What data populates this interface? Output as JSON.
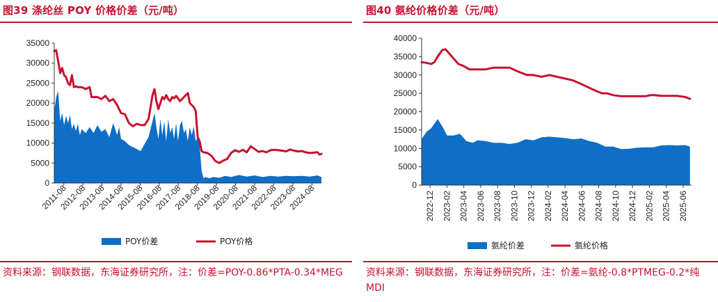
{
  "left": {
    "title": "图39  涤纶丝 POY 价格价差（元/吨）",
    "source": "资料来源：钢联数据，东海证券研究所，注：价差=POY-0.86*PTA-0.34*MEG",
    "chart_data": {
      "type": "area+line",
      "ylim": [
        0,
        35000
      ],
      "yticks": [
        "0",
        "5000",
        "10000",
        "15000",
        "20000",
        "25000",
        "30000",
        "35000"
      ],
      "xticks": [
        "2011-08",
        "2012-08",
        "2013-08",
        "2014-08",
        "2015-08",
        "2016-08",
        "2017-08",
        "2018-08",
        "2019-08",
        "2020-08",
        "2021-08",
        "2022-08",
        "2023-08",
        "2024-08"
      ],
      "x_range": [
        2011.6,
        2025.2
      ],
      "legend": [
        "POY价差",
        "POY价格"
      ],
      "colors": {
        "area": "#0f6fc6",
        "line": "#c8102e"
      },
      "series": [
        {
          "name": "POY价差",
          "kind": "area",
          "x": [
            2011.6,
            2011.7,
            2011.8,
            2011.9,
            2012.0,
            2012.1,
            2012.2,
            2012.3,
            2012.4,
            2012.5,
            2012.6,
            2012.7,
            2012.8,
            2012.9,
            2013.0,
            2013.2,
            2013.4,
            2013.6,
            2013.8,
            2014.0,
            2014.2,
            2014.4,
            2014.6,
            2014.8,
            2014.9,
            2015.0,
            2015.2,
            2015.4,
            2015.6,
            2015.8,
            2016.0,
            2016.2,
            2016.4,
            2016.6,
            2016.7,
            2016.8,
            2016.9,
            2017.0,
            2017.1,
            2017.2,
            2017.3,
            2017.4,
            2017.5,
            2017.6,
            2017.7,
            2017.8,
            2017.9,
            2018.0,
            2018.1,
            2018.2,
            2018.3,
            2018.4,
            2018.5,
            2018.6,
            2018.7,
            2018.8,
            2018.9,
            2019.0,
            2019.1,
            2019.2,
            2019.3,
            2019.5,
            2019.7,
            2020.0,
            2020.3,
            2020.6,
            2021.0,
            2021.4,
            2021.8,
            2022.2,
            2022.6,
            2023.0,
            2023.4,
            2023.8,
            2024.2,
            2024.6,
            2025.0,
            2025.2
          ],
          "y": [
            18000,
            21500,
            23000,
            15500,
            17500,
            14500,
            16800,
            15000,
            17000,
            13500,
            14800,
            13000,
            14800,
            12000,
            13500,
            12500,
            14000,
            12500,
            14500,
            12800,
            13500,
            11500,
            15000,
            12000,
            14000,
            11000,
            10500,
            9500,
            9000,
            8500,
            8000,
            9800,
            11500,
            15500,
            17500,
            14000,
            11000,
            16000,
            12000,
            15500,
            10500,
            16000,
            12500,
            14000,
            11000,
            15000,
            10500,
            14500,
            15500,
            12500,
            13500,
            10500,
            14000,
            12000,
            14200,
            10500,
            11500,
            9500,
            3000,
            1200,
            1500,
            1200,
            1500,
            1300,
            1800,
            1500,
            2000,
            1600,
            1900,
            1500,
            1800,
            1600,
            1800,
            1700,
            1800,
            1600,
            1900,
            1500
          ]
        },
        {
          "name": "POY价格",
          "kind": "line",
          "x": [
            2011.6,
            2011.7,
            2011.8,
            2011.9,
            2012.0,
            2012.1,
            2012.2,
            2012.3,
            2012.4,
            2012.5,
            2012.6,
            2012.7,
            2012.8,
            2013.0,
            2013.2,
            2013.4,
            2013.5,
            2013.8,
            2014.0,
            2014.2,
            2014.4,
            2014.6,
            2014.8,
            2015.0,
            2015.2,
            2015.4,
            2015.6,
            2015.8,
            2016.0,
            2016.2,
            2016.4,
            2016.5,
            2016.6,
            2016.7,
            2016.8,
            2016.9,
            2017.0,
            2017.1,
            2017.2,
            2017.3,
            2017.4,
            2017.5,
            2017.6,
            2017.7,
            2017.8,
            2018.0,
            2018.2,
            2018.4,
            2018.5,
            2018.6,
            2018.7,
            2018.8,
            2018.9,
            2019.0,
            2019.1,
            2019.2,
            2019.4,
            2019.6,
            2019.8,
            2020.0,
            2020.2,
            2020.4,
            2020.6,
            2020.8,
            2021.0,
            2021.2,
            2021.4,
            2021.6,
            2021.8,
            2022.0,
            2022.2,
            2022.4,
            2022.6,
            2022.8,
            2023.0,
            2023.2,
            2023.4,
            2023.6,
            2023.8,
            2024.0,
            2024.2,
            2024.4,
            2024.6,
            2024.8,
            2025.0,
            2025.1,
            2025.2
          ],
          "y": [
            33000,
            33200,
            30500,
            27500,
            28800,
            27000,
            26500,
            25000,
            24500,
            27000,
            24000,
            24200,
            24000,
            24000,
            23500,
            24000,
            21500,
            21500,
            21000,
            21800,
            20500,
            21000,
            19500,
            17500,
            17200,
            15000,
            14200,
            14800,
            14500,
            14500,
            16000,
            19000,
            22000,
            23500,
            20500,
            18500,
            20000,
            21500,
            21000,
            22000,
            21000,
            20500,
            21500,
            21200,
            21800,
            20500,
            21500,
            22500,
            20000,
            19500,
            19000,
            18000,
            11500,
            10500,
            8000,
            7700,
            7500,
            6800,
            5500,
            5000,
            5600,
            6000,
            7500,
            8200,
            7800,
            8300,
            7700,
            9200,
            8500,
            7800,
            8000,
            7700,
            8200,
            8300,
            8200,
            8100,
            7900,
            8400,
            8100,
            7900,
            8000,
            7700,
            7500,
            7600,
            7700,
            7100,
            7300
          ]
        }
      ]
    }
  },
  "right": {
    "title": "图40  氨纶价格价差（元/吨）",
    "source": "资料来源：钢联数据，东海证券研究所，注：价差=氨纶-0.8*PTMEG-0.2*纯 MDI",
    "chart_data": {
      "type": "area+line",
      "ylim": [
        0,
        40000
      ],
      "yticks": [
        "0",
        "5000",
        "10000",
        "15000",
        "20000",
        "25000",
        "30000",
        "35000",
        "40000"
      ],
      "xticks": [
        "2022-12",
        "2023-02",
        "2023-04",
        "2023-06",
        "2023-08",
        "2023-10",
        "2023-12",
        "2024-02",
        "2024-04",
        "2024-06",
        "2024-08",
        "2024-10",
        "2024-12",
        "2025-02",
        "2025-04",
        "2025-06"
      ],
      "x_range": [
        0,
        16.9
      ],
      "legend": [
        "氨纶价差",
        "氨纶价格"
      ],
      "colors": {
        "area": "#0f6fc6",
        "line": "#c8102e"
      },
      "series": [
        {
          "name": "氨纶价差",
          "kind": "area",
          "x": [
            0,
            0.3,
            0.6,
            1.0,
            1.3,
            1.6,
            2.0,
            2.4,
            2.8,
            3.2,
            3.5,
            4.0,
            4.5,
            5.0,
            5.5,
            6.0,
            6.5,
            7.0,
            7.5,
            8.0,
            8.5,
            9.0,
            9.5,
            10.0,
            10.5,
            11.0,
            11.5,
            12.0,
            12.5,
            13.0,
            13.5,
            14.0,
            14.5,
            15.0,
            15.5,
            16.0,
            16.5,
            16.8
          ],
          "y": [
            12500,
            14500,
            15500,
            18000,
            16000,
            13500,
            13500,
            14000,
            12000,
            11500,
            12200,
            12000,
            11500,
            11500,
            11200,
            11500,
            12500,
            12200,
            13000,
            13200,
            13000,
            12800,
            12500,
            12700,
            12000,
            11500,
            10500,
            10500,
            9800,
            9900,
            10200,
            10300,
            10300,
            10800,
            10900,
            10800,
            10900,
            10500
          ]
        },
        {
          "name": "氨纶价格",
          "kind": "line",
          "x": [
            0,
            0.3,
            0.6,
            0.8,
            1.0,
            1.3,
            1.5,
            1.7,
            2.0,
            2.3,
            2.6,
            3.0,
            3.3,
            3.6,
            4.0,
            4.5,
            5.0,
            5.5,
            6.0,
            6.3,
            6.6,
            7.0,
            7.5,
            8.0,
            8.5,
            9.0,
            9.5,
            10.0,
            10.5,
            11.0,
            11.3,
            11.6,
            12.0,
            12.5,
            13.0,
            13.5,
            14.0,
            14.3,
            14.6,
            15.0,
            15.5,
            16.0,
            16.5,
            16.8
          ],
          "y": [
            33500,
            33300,
            33000,
            33500,
            35000,
            36800,
            37000,
            36000,
            34500,
            33000,
            32500,
            31500,
            31500,
            31500,
            31500,
            32000,
            32000,
            32000,
            31000,
            30500,
            30000,
            30000,
            29500,
            30000,
            29500,
            29000,
            28500,
            27500,
            26500,
            25500,
            25000,
            25000,
            24500,
            24200,
            24200,
            24200,
            24200,
            24500,
            24500,
            24300,
            24300,
            24300,
            24000,
            23500
          ]
        }
      ]
    }
  }
}
